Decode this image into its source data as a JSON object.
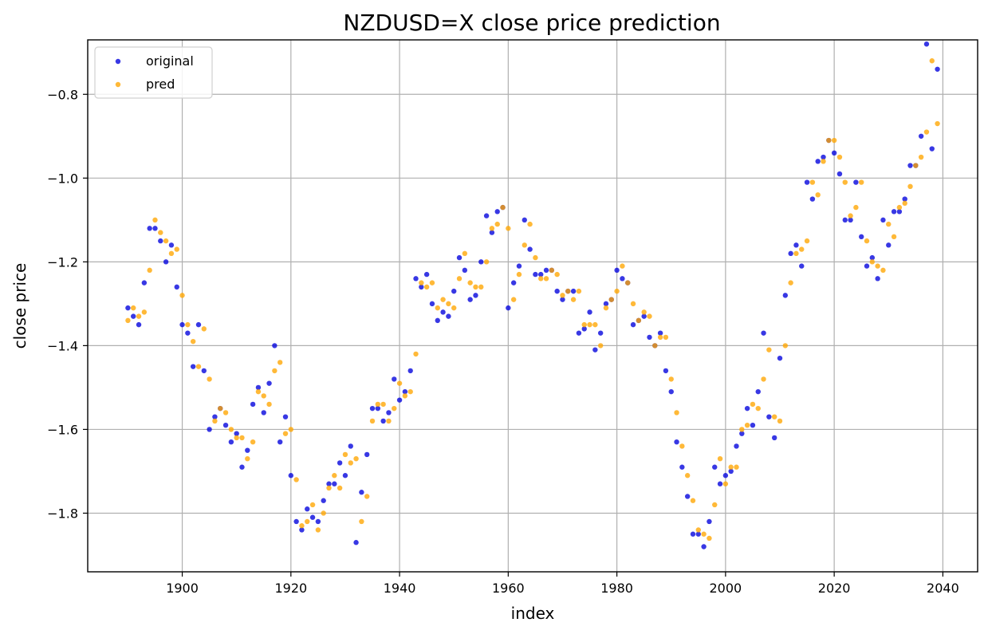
{
  "chart_data": {
    "type": "scatter",
    "title": "NZDUSD=X close price prediction",
    "xlabel": "index",
    "ylabel": "close price",
    "xlim": [
      1882.6,
      2046.4
    ],
    "ylim": [
      -1.94,
      -0.67
    ],
    "xticks": [
      1900,
      1920,
      1940,
      1960,
      1980,
      2000,
      2020,
      2040
    ],
    "yticks": [
      -1.8,
      -1.6,
      -1.4,
      -1.2,
      -1.0,
      -0.8
    ],
    "ytick_labels": [
      "−1.8",
      "−1.6",
      "−1.4",
      "−1.2",
      "−1.0",
      "−0.8"
    ],
    "grid": true,
    "legend_position": "top-left",
    "x_start": 1890,
    "series": [
      {
        "name": "original",
        "color": "#0000dd",
        "values": [
          -1.31,
          -1.33,
          -1.35,
          -1.25,
          -1.12,
          -1.12,
          -1.15,
          -1.2,
          -1.16,
          -1.26,
          -1.35,
          -1.37,
          -1.45,
          -1.35,
          -1.46,
          -1.6,
          -1.57,
          -1.55,
          -1.59,
          -1.63,
          -1.61,
          -1.69,
          -1.65,
          -1.54,
          -1.5,
          -1.56,
          -1.49,
          -1.4,
          -1.63,
          -1.57,
          -1.71,
          -1.82,
          -1.84,
          -1.79,
          -1.81,
          -1.82,
          -1.77,
          -1.73,
          -1.73,
          -1.68,
          -1.71,
          -1.64,
          -1.87,
          -1.75,
          -1.66,
          -1.55,
          -1.55,
          -1.58,
          -1.56,
          -1.48,
          -1.53,
          -1.51,
          -1.46,
          -1.24,
          -1.26,
          -1.23,
          -1.3,
          -1.34,
          -1.32,
          -1.33,
          -1.27,
          -1.19,
          -1.22,
          -1.29,
          -1.28,
          -1.2,
          -1.09,
          -1.13,
          -1.08,
          -1.07,
          -1.31,
          -1.25,
          -1.21,
          -1.1,
          -1.17,
          -1.23,
          -1.23,
          -1.22,
          -1.22,
          -1.27,
          -1.29,
          -1.27,
          -1.27,
          -1.37,
          -1.36,
          -1.32,
          -1.41,
          -1.37,
          -1.3,
          -1.29,
          -1.22,
          -1.24,
          -1.25,
          -1.35,
          -1.34,
          -1.33,
          -1.38,
          -1.4,
          -1.37,
          -1.46,
          -1.51,
          -1.63,
          -1.69,
          -1.76,
          -1.85,
          -1.85,
          -1.88,
          -1.82,
          -1.69,
          -1.73,
          -1.71,
          -1.7,
          -1.64,
          -1.61,
          -1.55,
          -1.59,
          -1.51,
          -1.37,
          -1.57,
          -1.62,
          -1.43,
          -1.28,
          -1.18,
          -1.16,
          -1.21,
          -1.01,
          -1.05,
          -0.96,
          -0.95,
          -0.91,
          -0.94,
          -0.99,
          -1.1,
          -1.1,
          -1.01,
          -1.14,
          -1.21,
          -1.19,
          -1.24,
          -1.1,
          -1.16,
          -1.08,
          -1.08,
          -1.05,
          -0.97,
          -0.97,
          -0.9,
          -0.68,
          -0.93,
          -0.74
        ]
      },
      {
        "name": "pred",
        "color": "#ffa500",
        "values": [
          -1.34,
          -1.31,
          -1.33,
          -1.32,
          -1.22,
          -1.1,
          -1.13,
          -1.15,
          -1.18,
          -1.17,
          -1.28,
          -1.35,
          -1.39,
          -1.45,
          -1.36,
          -1.48,
          -1.58,
          -1.55,
          -1.56,
          -1.6,
          -1.62,
          -1.62,
          -1.67,
          -1.63,
          -1.51,
          -1.52,
          -1.54,
          -1.46,
          -1.44,
          -1.61,
          -1.6,
          -1.72,
          -1.83,
          -1.82,
          -1.78,
          -1.84,
          -1.8,
          -1.74,
          -1.71,
          -1.74,
          -1.66,
          -1.68,
          -1.67,
          -1.82,
          -1.76,
          -1.58,
          -1.54,
          -1.54,
          -1.58,
          -1.55,
          -1.49,
          -1.52,
          -1.51,
          -1.42,
          -1.25,
          -1.26,
          -1.25,
          -1.31,
          -1.29,
          -1.3,
          -1.31,
          -1.24,
          -1.18,
          -1.25,
          -1.26,
          -1.26,
          -1.2,
          -1.12,
          -1.11,
          -1.07,
          -1.12,
          -1.29,
          -1.23,
          -1.16,
          -1.11,
          -1.19,
          -1.24,
          -1.24,
          -1.22,
          -1.23,
          -1.28,
          -1.27,
          -1.29,
          -1.27,
          -1.35,
          -1.35,
          -1.35,
          -1.4,
          -1.31,
          -1.29,
          -1.27,
          -1.21,
          -1.25,
          -1.3,
          -1.34,
          -1.32,
          -1.33,
          -1.4,
          -1.38,
          -1.38,
          -1.48,
          -1.56,
          -1.64,
          -1.71,
          -1.77,
          -1.84,
          -1.85,
          -1.86,
          -1.78,
          -1.67,
          -1.73,
          -1.69,
          -1.69,
          -1.6,
          -1.59,
          -1.54,
          -1.55,
          -1.48,
          -1.41,
          -1.57,
          -1.58,
          -1.4,
          -1.25,
          -1.18,
          -1.17,
          -1.15,
          -1.01,
          -1.04,
          -0.96,
          -0.91,
          -0.91,
          -0.95,
          -1.01,
          -1.09,
          -1.07,
          -1.01,
          -1.15,
          -1.2,
          -1.21,
          -1.22,
          -1.11,
          -1.14,
          -1.07,
          -1.06,
          -1.02,
          -0.97,
          -0.95,
          -0.89,
          -0.72,
          -0.87
        ]
      }
    ]
  }
}
